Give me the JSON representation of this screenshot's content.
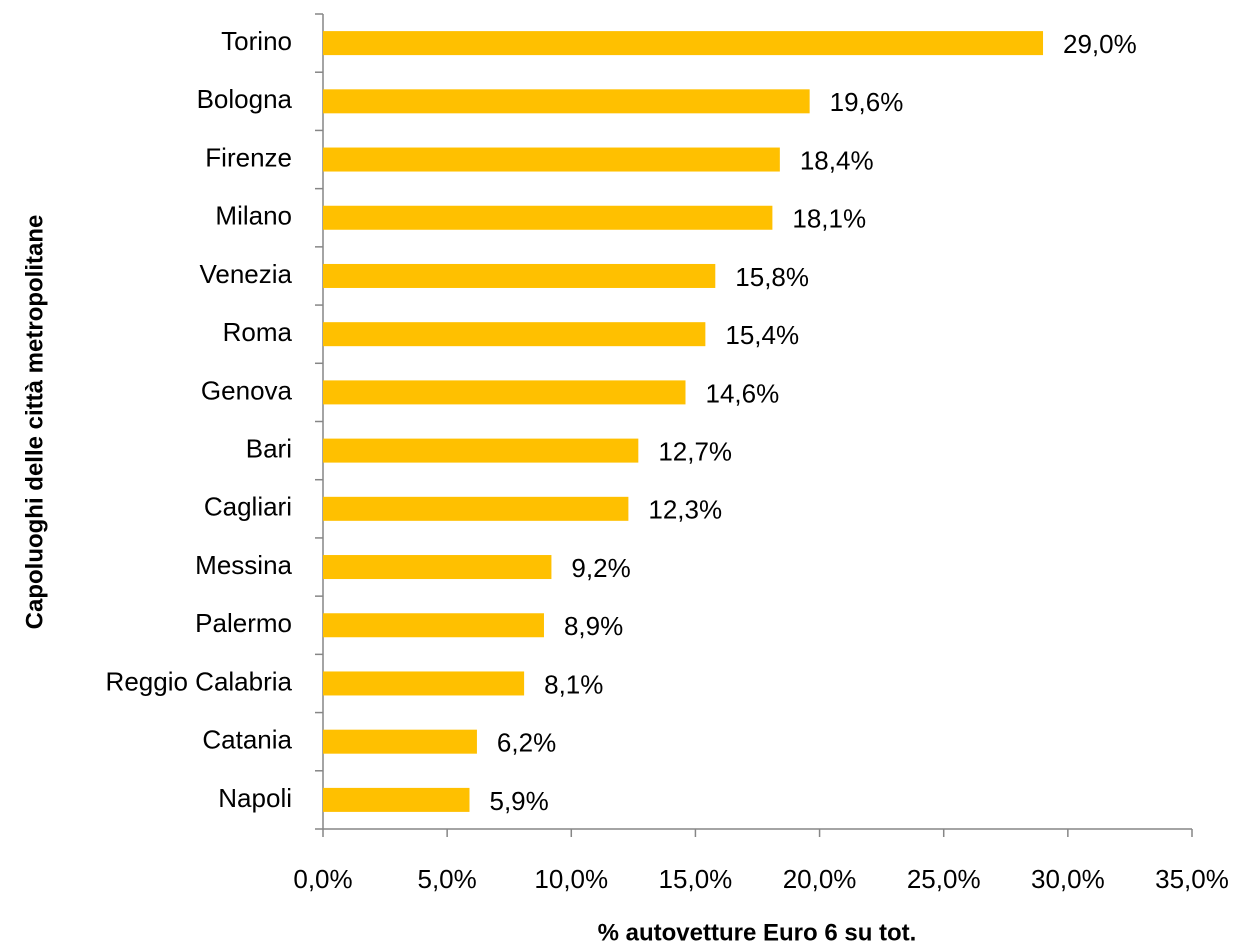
{
  "chart_data": {
    "type": "bar",
    "orientation": "horizontal",
    "x_label": "% autovetture Euro 6 su tot.",
    "y_label": "Capoluoghi delle città metropolitane",
    "categories": [
      "Torino",
      "Bologna",
      "Firenze",
      "Milano",
      "Venezia",
      "Roma",
      "Genova",
      "Bari",
      "Cagliari",
      "Messina",
      "Palermo",
      "Reggio Calabria",
      "Catania",
      "Napoli"
    ],
    "values": [
      29.0,
      19.6,
      18.4,
      18.1,
      15.8,
      15.4,
      14.6,
      12.7,
      12.3,
      9.2,
      8.9,
      8.1,
      6.2,
      5.9
    ],
    "value_labels": [
      "29,0%",
      "19,6%",
      "18,4%",
      "18,1%",
      "15,8%",
      "15,4%",
      "14,6%",
      "12,7%",
      "12,3%",
      "9,2%",
      "8,9%",
      "8,1%",
      "6,2%",
      "5,9%"
    ],
    "color": "#ffc000",
    "xlim": [
      0,
      35
    ],
    "xticks": [
      {
        "value": 0,
        "label": "0,0%"
      },
      {
        "value": 5,
        "label": "5,0%"
      },
      {
        "value": 10,
        "label": "10,0%"
      },
      {
        "value": 15,
        "label": "15,0%"
      },
      {
        "value": 20,
        "label": "20,0%"
      },
      {
        "value": 25,
        "label": "25,0%"
      },
      {
        "value": 30,
        "label": "30,0%"
      },
      {
        "value": 35,
        "label": "35,0%"
      }
    ],
    "grid": false
  }
}
